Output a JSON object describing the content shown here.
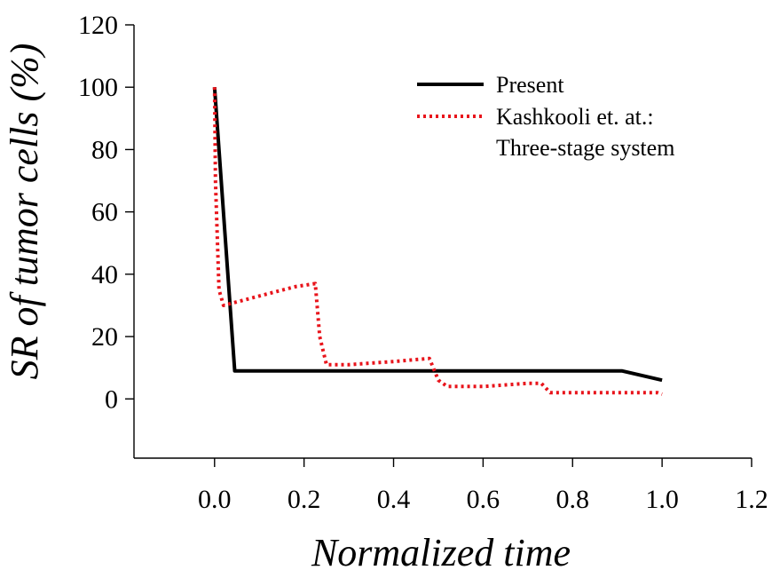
{
  "chart_data": {
    "type": "line",
    "title": "",
    "xlabel": "Normalized time",
    "ylabel": "SR of tumor cells (%)",
    "xlim": [
      -0.18,
      1.2
    ],
    "ylim": [
      -19,
      120
    ],
    "xticks": [
      0.0,
      0.2,
      0.4,
      0.6,
      0.8,
      1.0,
      1.2
    ],
    "xtick_labels": [
      "0.0",
      "0.2",
      "0.4",
      "0.6",
      "0.8",
      "1.0",
      "1.2"
    ],
    "yticks": [
      0,
      20,
      40,
      60,
      80,
      100,
      120
    ],
    "ytick_labels": [
      "0",
      "20",
      "40",
      "60",
      "80",
      "100",
      "120"
    ],
    "grid": false,
    "legend_position": "top-right",
    "series": [
      {
        "name": "Present",
        "color": "#000000",
        "style": "solid",
        "x": [
          0.0,
          0.045,
          0.91,
          1.0
        ],
        "y": [
          100,
          9,
          9,
          6
        ]
      },
      {
        "name": "Kashkooli et. at.: Three-stage system",
        "legend_lines": [
          "Kashkooli et. at.:",
          "Three-stage system"
        ],
        "color": "#e8141b",
        "style": "dotted",
        "x": [
          0.0,
          0.002,
          0.01,
          0.02,
          0.1,
          0.18,
          0.225,
          0.235,
          0.25,
          0.3,
          0.4,
          0.48,
          0.5,
          0.52,
          0.6,
          0.7,
          0.73,
          0.75,
          0.8,
          0.9,
          0.99,
          1.0
        ],
        "y": [
          100,
          70,
          35,
          30,
          33,
          36,
          37,
          20,
          11,
          11,
          12,
          13,
          6,
          4,
          4,
          5,
          5,
          2,
          2,
          2,
          2,
          1.5
        ]
      }
    ]
  }
}
